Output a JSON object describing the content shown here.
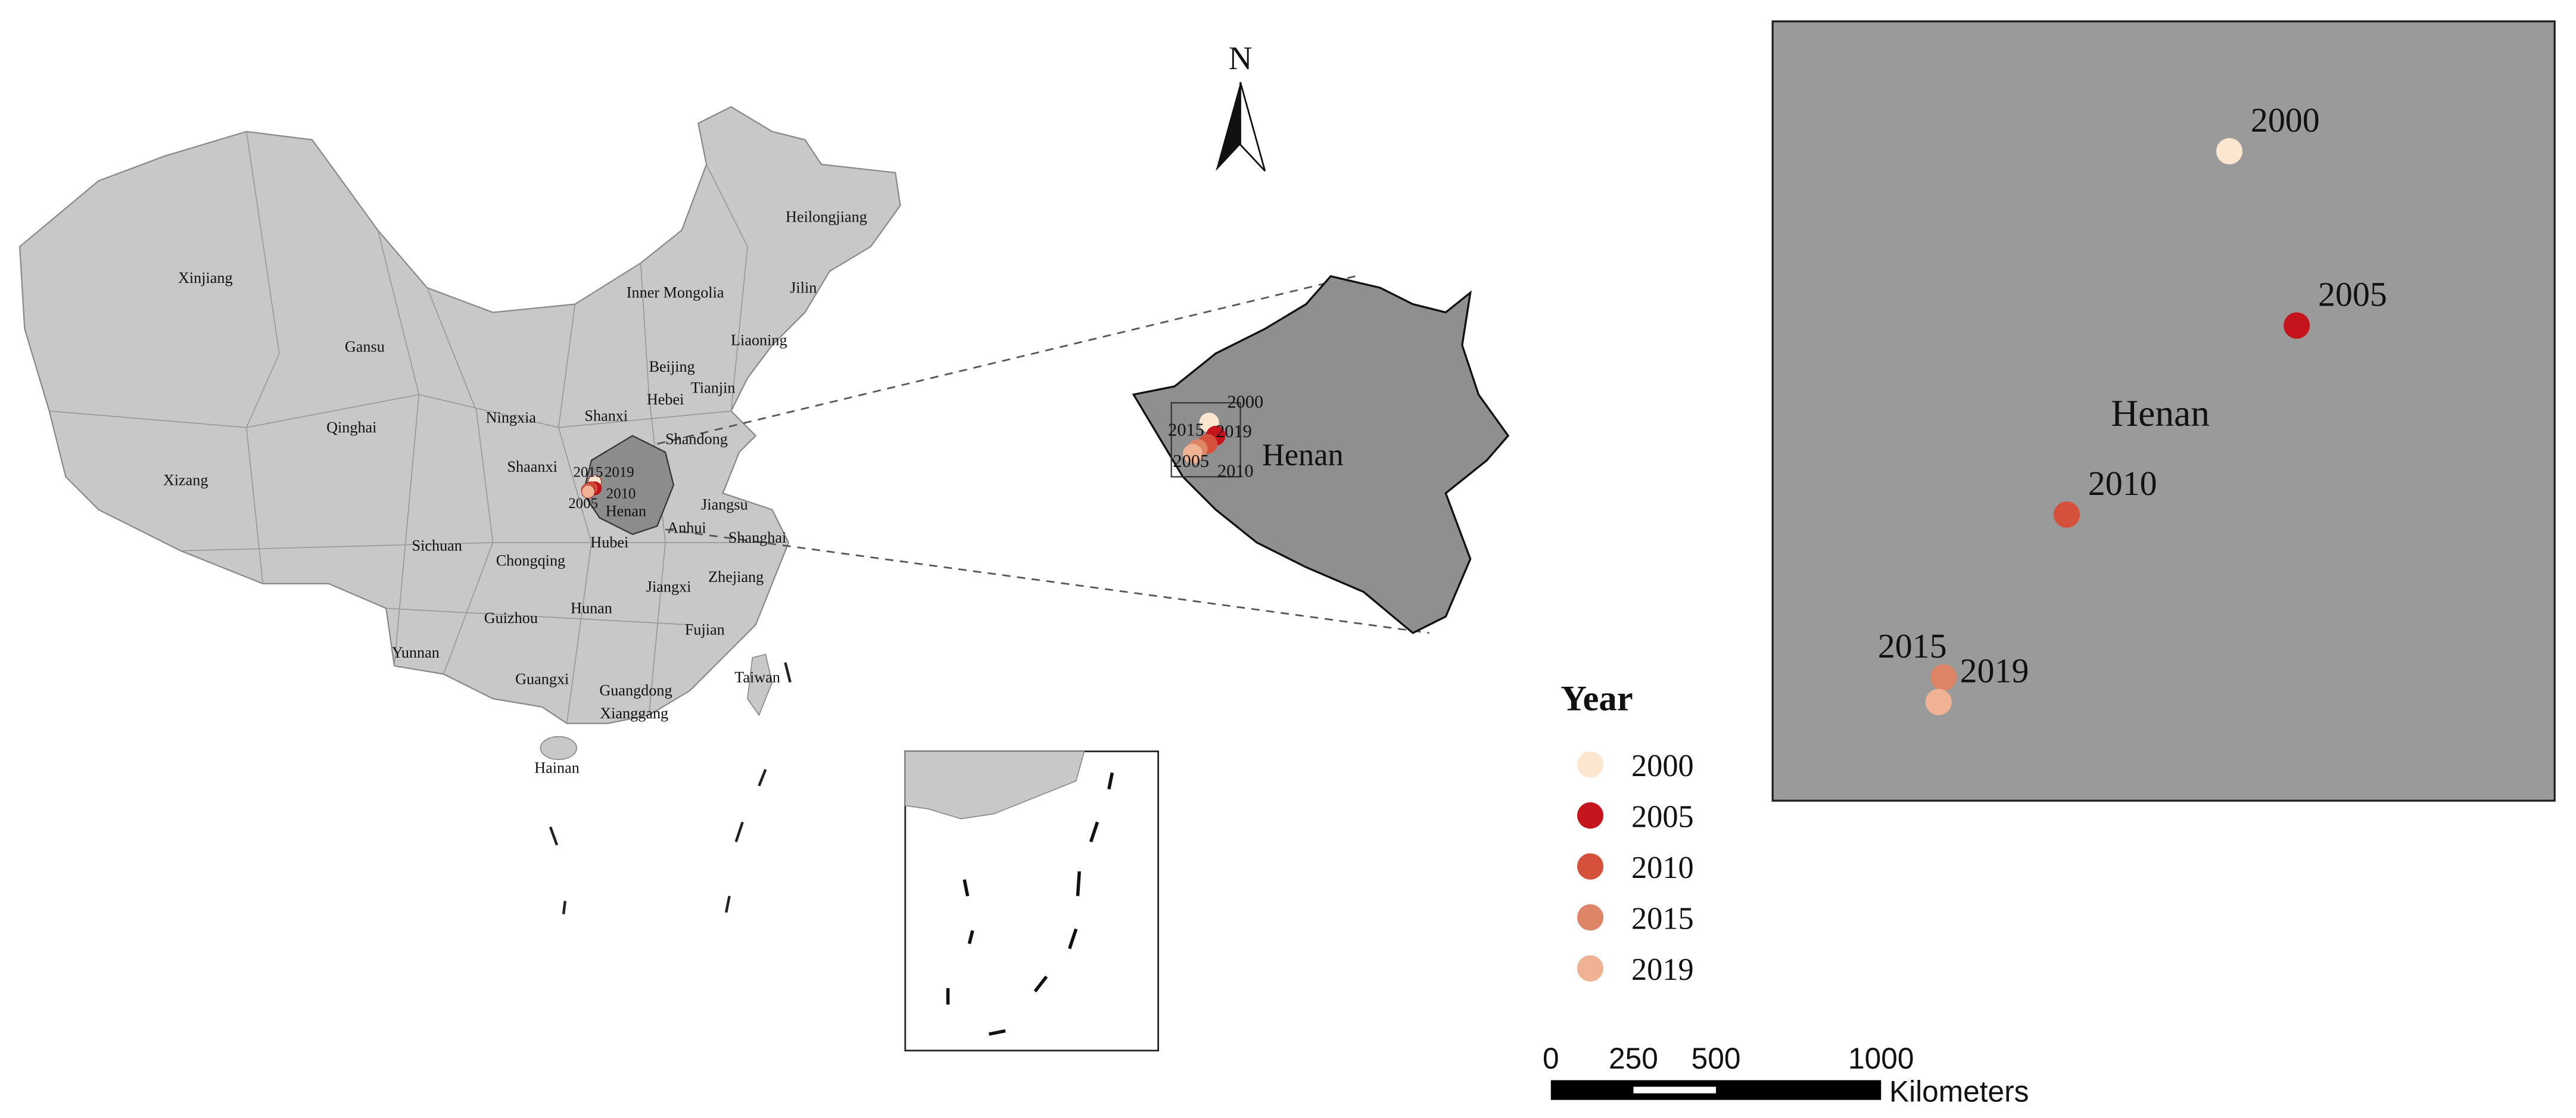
{
  "north": "N",
  "region": "Henan",
  "provinces": [
    "Xinjiang",
    "Heilongjiang",
    "Inner Mongolia",
    "Jilin",
    "Gansu",
    "Liaoning",
    "Beijing",
    "Tianjin",
    "Hebei",
    "Ningxia",
    "Shanxi",
    "Qinghai",
    "Shandong",
    "Xizang",
    "Shaanxi",
    "Jiangsu",
    "Henan",
    "Anhui",
    "Shanghai",
    "Sichuan",
    "Hubei",
    "Chongqing",
    "Zhejiang",
    "Jiangxi",
    "Hunan",
    "Guizhou",
    "Fujian",
    "Yunnan",
    "Guangxi",
    "Taiwan",
    "Guangdong",
    "Xianggang",
    "Hainan"
  ],
  "years": [
    {
      "label": "2000",
      "color": "#fde6cf"
    },
    {
      "label": "2005",
      "color": "#c5141b"
    },
    {
      "label": "2010",
      "color": "#d6513b"
    },
    {
      "label": "2015",
      "color": "#de8568"
    },
    {
      "label": "2019",
      "color": "#efb293"
    }
  ],
  "legend": {
    "title": "Year"
  },
  "scale_bar": {
    "ticks": [
      0,
      250,
      500,
      1000
    ],
    "unit": "Kilometers"
  }
}
